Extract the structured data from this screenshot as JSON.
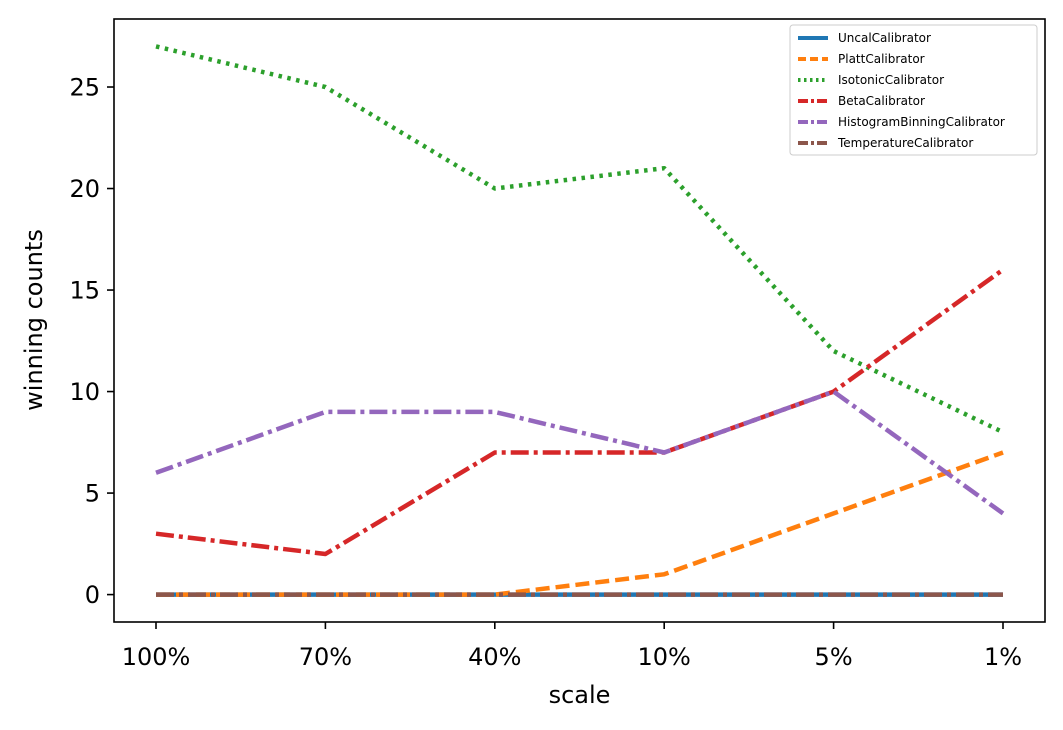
{
  "chart_data": {
    "type": "line",
    "xlabel": "scale",
    "ylabel": "winning counts",
    "categories": [
      "100%",
      "70%",
      "40%",
      "10%",
      "5%",
      "1%"
    ],
    "ylim": [
      -1.35,
      28.35
    ],
    "yticks": [
      0,
      5,
      10,
      15,
      20,
      25
    ],
    "grid": false,
    "legend_position": "top-right",
    "series": [
      {
        "name": "UncalCalibrator",
        "values": [
          0,
          0,
          0,
          0,
          0,
          0
        ],
        "color": "#1f77b4",
        "dash": "solid"
      },
      {
        "name": "PlattCalibrator",
        "values": [
          0,
          0,
          0,
          1,
          4,
          7
        ],
        "color": "#ff7f0e",
        "dash": "dashed"
      },
      {
        "name": "IsotonicCalibrator",
        "values": [
          27,
          25,
          20,
          21,
          12,
          8
        ],
        "color": "#2ca02c",
        "dash": "dotted"
      },
      {
        "name": "BetaCalibrator",
        "values": [
          3,
          2,
          7,
          7,
          10,
          16
        ],
        "color": "#d62728",
        "dash": "dashdot"
      },
      {
        "name": "HistogramBinningCalibrator",
        "values": [
          6,
          9,
          9,
          7,
          10,
          4
        ],
        "color": "#9467bd",
        "dash": "dashdot"
      },
      {
        "name": "TemperatureCalibrator",
        "values": [
          0,
          0,
          0,
          0,
          0,
          0
        ],
        "color": "#8c564b",
        "dash": "dashdot"
      }
    ]
  }
}
